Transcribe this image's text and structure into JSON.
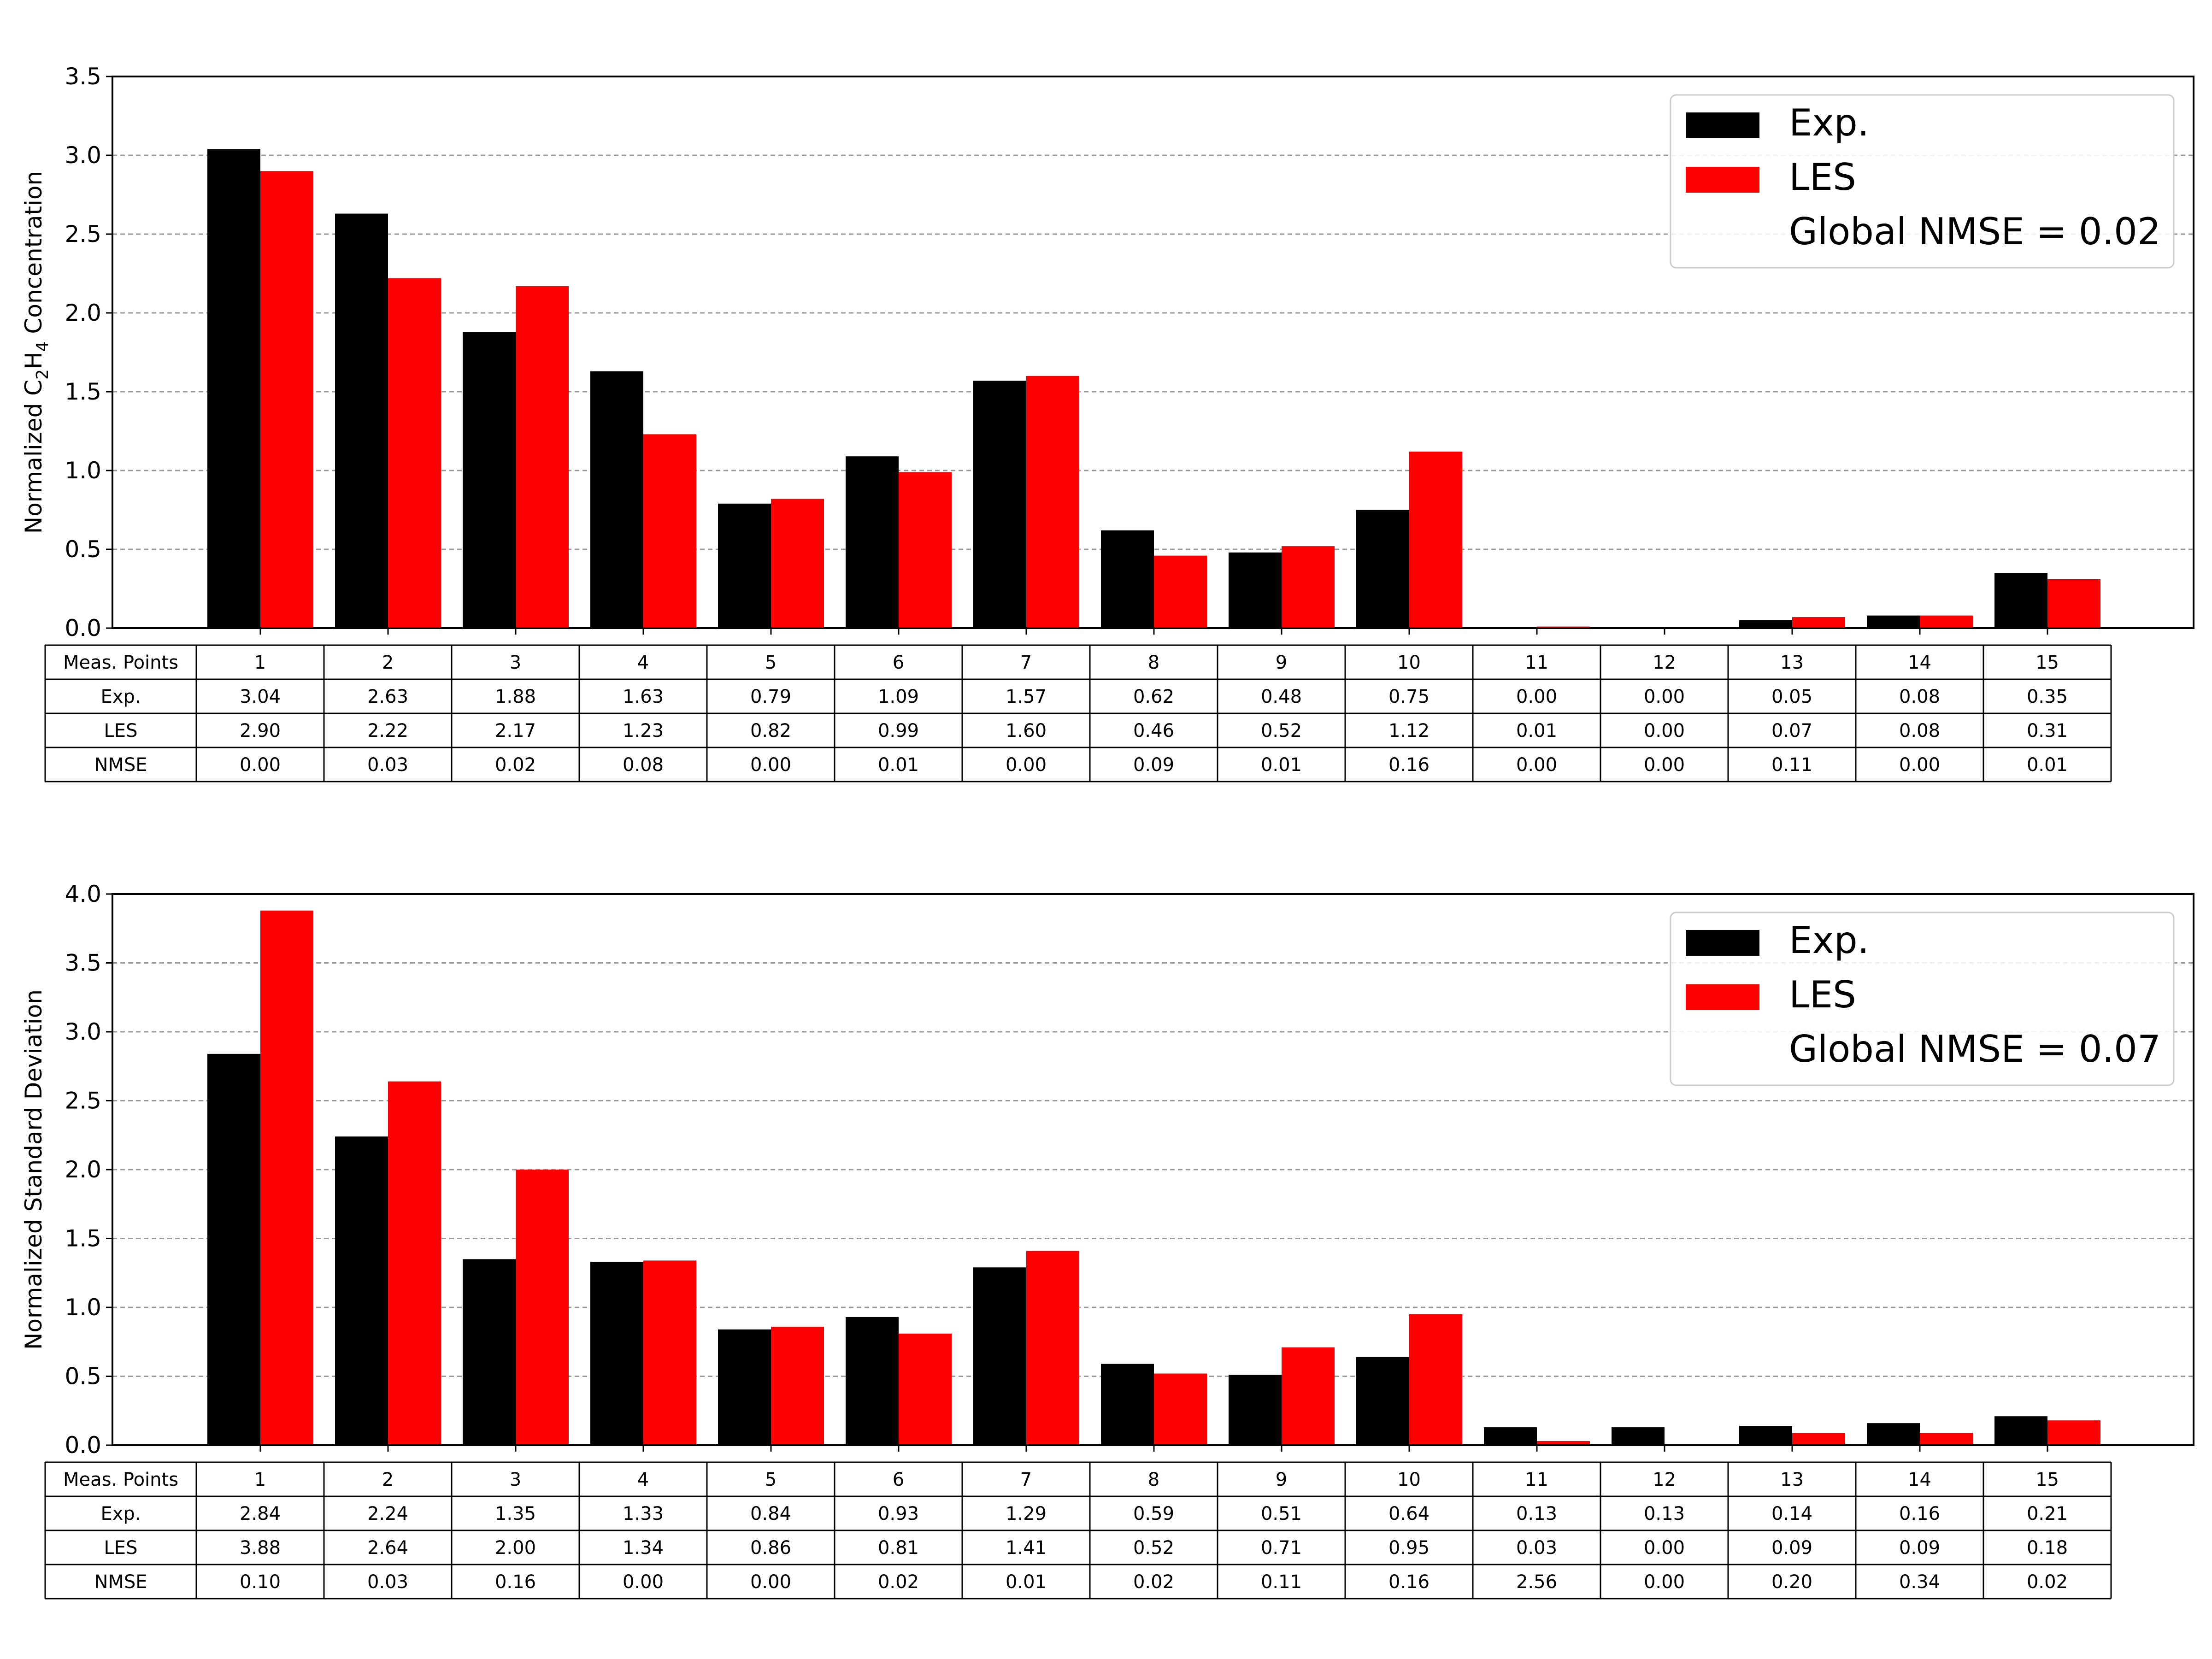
{
  "chart_data": [
    {
      "type": "bar",
      "ylabel_main": "Normalized C",
      "ylabel_sub1": "2",
      "ylabel_mid": "H",
      "ylabel_sub2": "4",
      "ylabel_tail": " Concentration",
      "ylim": [
        0,
        3.5
      ],
      "yticks": [
        "0.0",
        "0.5",
        "1.0",
        "1.5",
        "2.0",
        "2.5",
        "3.0",
        "3.5"
      ],
      "grid": true,
      "legend_position": "top-right",
      "categories": [
        "1",
        "2",
        "3",
        "4",
        "5",
        "6",
        "7",
        "8",
        "9",
        "10",
        "11",
        "12",
        "13",
        "14",
        "15"
      ],
      "series": [
        {
          "name": "Exp.",
          "color": "#000000",
          "values": [
            3.04,
            2.63,
            1.88,
            1.63,
            0.79,
            1.09,
            1.57,
            0.62,
            0.48,
            0.75,
            0.0,
            0.0,
            0.05,
            0.08,
            0.35
          ]
        },
        {
          "name": "LES",
          "color": "#ff0000",
          "values": [
            2.9,
            2.22,
            2.17,
            1.23,
            0.82,
            0.99,
            1.6,
            0.46,
            0.52,
            1.12,
            0.01,
            0.0,
            0.07,
            0.08,
            0.31
          ]
        }
      ],
      "legend_note": "Global NMSE = 0.02",
      "table": {
        "header": "Meas. Points",
        "rows": [
          {
            "label": "Exp.",
            "cells": [
              "3.04",
              "2.63",
              "1.88",
              "1.63",
              "0.79",
              "1.09",
              "1.57",
              "0.62",
              "0.48",
              "0.75",
              "0.00",
              "0.00",
              "0.05",
              "0.08",
              "0.35"
            ]
          },
          {
            "label": "LES",
            "cells": [
              "2.90",
              "2.22",
              "2.17",
              "1.23",
              "0.82",
              "0.99",
              "1.60",
              "0.46",
              "0.52",
              "1.12",
              "0.01",
              "0.00",
              "0.07",
              "0.08",
              "0.31"
            ]
          },
          {
            "label": "NMSE",
            "cells": [
              "0.00",
              "0.03",
              "0.02",
              "0.08",
              "0.00",
              "0.01",
              "0.00",
              "0.09",
              "0.01",
              "0.16",
              "0.00",
              "0.00",
              "0.11",
              "0.00",
              "0.01"
            ]
          }
        ]
      }
    },
    {
      "type": "bar",
      "ylabel": "Normalized Standard Deviation",
      "ylim": [
        0,
        4.0
      ],
      "yticks": [
        "0.0",
        "0.5",
        "1.0",
        "1.5",
        "2.0",
        "2.5",
        "3.0",
        "3.5",
        "4.0"
      ],
      "grid": true,
      "legend_position": "top-right",
      "categories": [
        "1",
        "2",
        "3",
        "4",
        "5",
        "6",
        "7",
        "8",
        "9",
        "10",
        "11",
        "12",
        "13",
        "14",
        "15"
      ],
      "series": [
        {
          "name": "Exp.",
          "color": "#000000",
          "values": [
            2.84,
            2.24,
            1.35,
            1.33,
            0.84,
            0.93,
            1.29,
            0.59,
            0.51,
            0.64,
            0.13,
            0.13,
            0.14,
            0.16,
            0.21
          ]
        },
        {
          "name": "LES",
          "color": "#ff0000",
          "values": [
            3.88,
            2.64,
            2.0,
            1.34,
            0.86,
            0.81,
            1.41,
            0.52,
            0.71,
            0.95,
            0.03,
            0.0,
            0.09,
            0.09,
            0.18
          ]
        }
      ],
      "legend_note": "Global NMSE = 0.07",
      "table": {
        "header": "Meas. Points",
        "rows": [
          {
            "label": "Exp.",
            "cells": [
              "2.84",
              "2.24",
              "1.35",
              "1.33",
              "0.84",
              "0.93",
              "1.29",
              "0.59",
              "0.51",
              "0.64",
              "0.13",
              "0.13",
              "0.14",
              "0.16",
              "0.21"
            ]
          },
          {
            "label": "LES",
            "cells": [
              "3.88",
              "2.64",
              "2.00",
              "1.34",
              "0.86",
              "0.81",
              "1.41",
              "0.52",
              "0.71",
              "0.95",
              "0.03",
              "0.00",
              "0.09",
              "0.09",
              "0.18"
            ]
          },
          {
            "label": "NMSE",
            "cells": [
              "0.10",
              "0.03",
              "0.16",
              "0.00",
              "0.00",
              "0.02",
              "0.01",
              "0.02",
              "0.11",
              "0.16",
              "2.56",
              "0.00",
              "0.20",
              "0.34",
              "0.02"
            ]
          }
        ]
      }
    }
  ]
}
